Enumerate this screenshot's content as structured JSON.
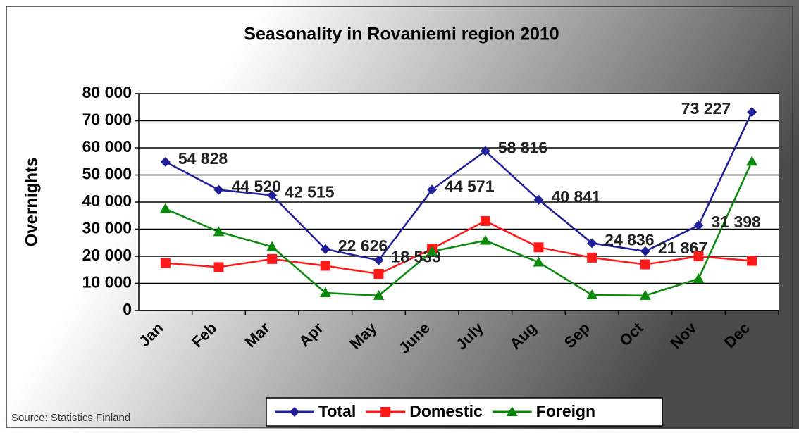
{
  "chart_data": {
    "type": "line",
    "title": "Seasonality in Rovaniemi region 2010",
    "y_label": "Overnights",
    "source": "Source: Statistics Finland",
    "categories": [
      "Jan",
      "Feb",
      "Mar",
      "Apr",
      "May",
      "June",
      "July",
      "Aug",
      "Sep",
      "Oct",
      "Nov",
      "Dec"
    ],
    "series": [
      {
        "name": "Total",
        "color": "#1f1f99",
        "marker": "diamond",
        "values": [
          54828,
          44520,
          42515,
          22626,
          18533,
          44571,
          58816,
          40841,
          24836,
          21867,
          31398,
          73227
        ],
        "value_labels": [
          "54 828",
          "44 520",
          "42 515",
          "22 626",
          "18 533",
          "44 571",
          "58 816",
          "40 841",
          "24 836",
          "21 867",
          "31 398",
          "73 227"
        ]
      },
      {
        "name": "Domestic",
        "color": "#ff1a1a",
        "marker": "square",
        "values": [
          17500,
          16000,
          19000,
          16500,
          13500,
          22800,
          33000,
          23300,
          19500,
          17000,
          20000,
          18300
        ]
      },
      {
        "name": "Foreign",
        "color": "#0a8a0a",
        "marker": "triangle",
        "values": [
          37500,
          29000,
          23500,
          6500,
          5500,
          21800,
          25800,
          17800,
          5700,
          5500,
          11700,
          55000
        ]
      }
    ],
    "ylim": [
      0,
      80000
    ],
    "yticks": [
      0,
      {
        "value": 10000,
        "label": "10 000"
      },
      {
        "value": 20000,
        "label": "20 000"
      },
      {
        "value": 30000,
        "label": "30 000"
      },
      {
        "value": 40000,
        "label": "40 000"
      },
      {
        "value": 50000,
        "label": "50 000"
      },
      {
        "value": 60000,
        "label": "60 000"
      },
      {
        "value": 70000,
        "label": "70 000"
      },
      {
        "value": 80000,
        "label": "80 000"
      }
    ],
    "grid": true,
    "legend": "bottom"
  }
}
